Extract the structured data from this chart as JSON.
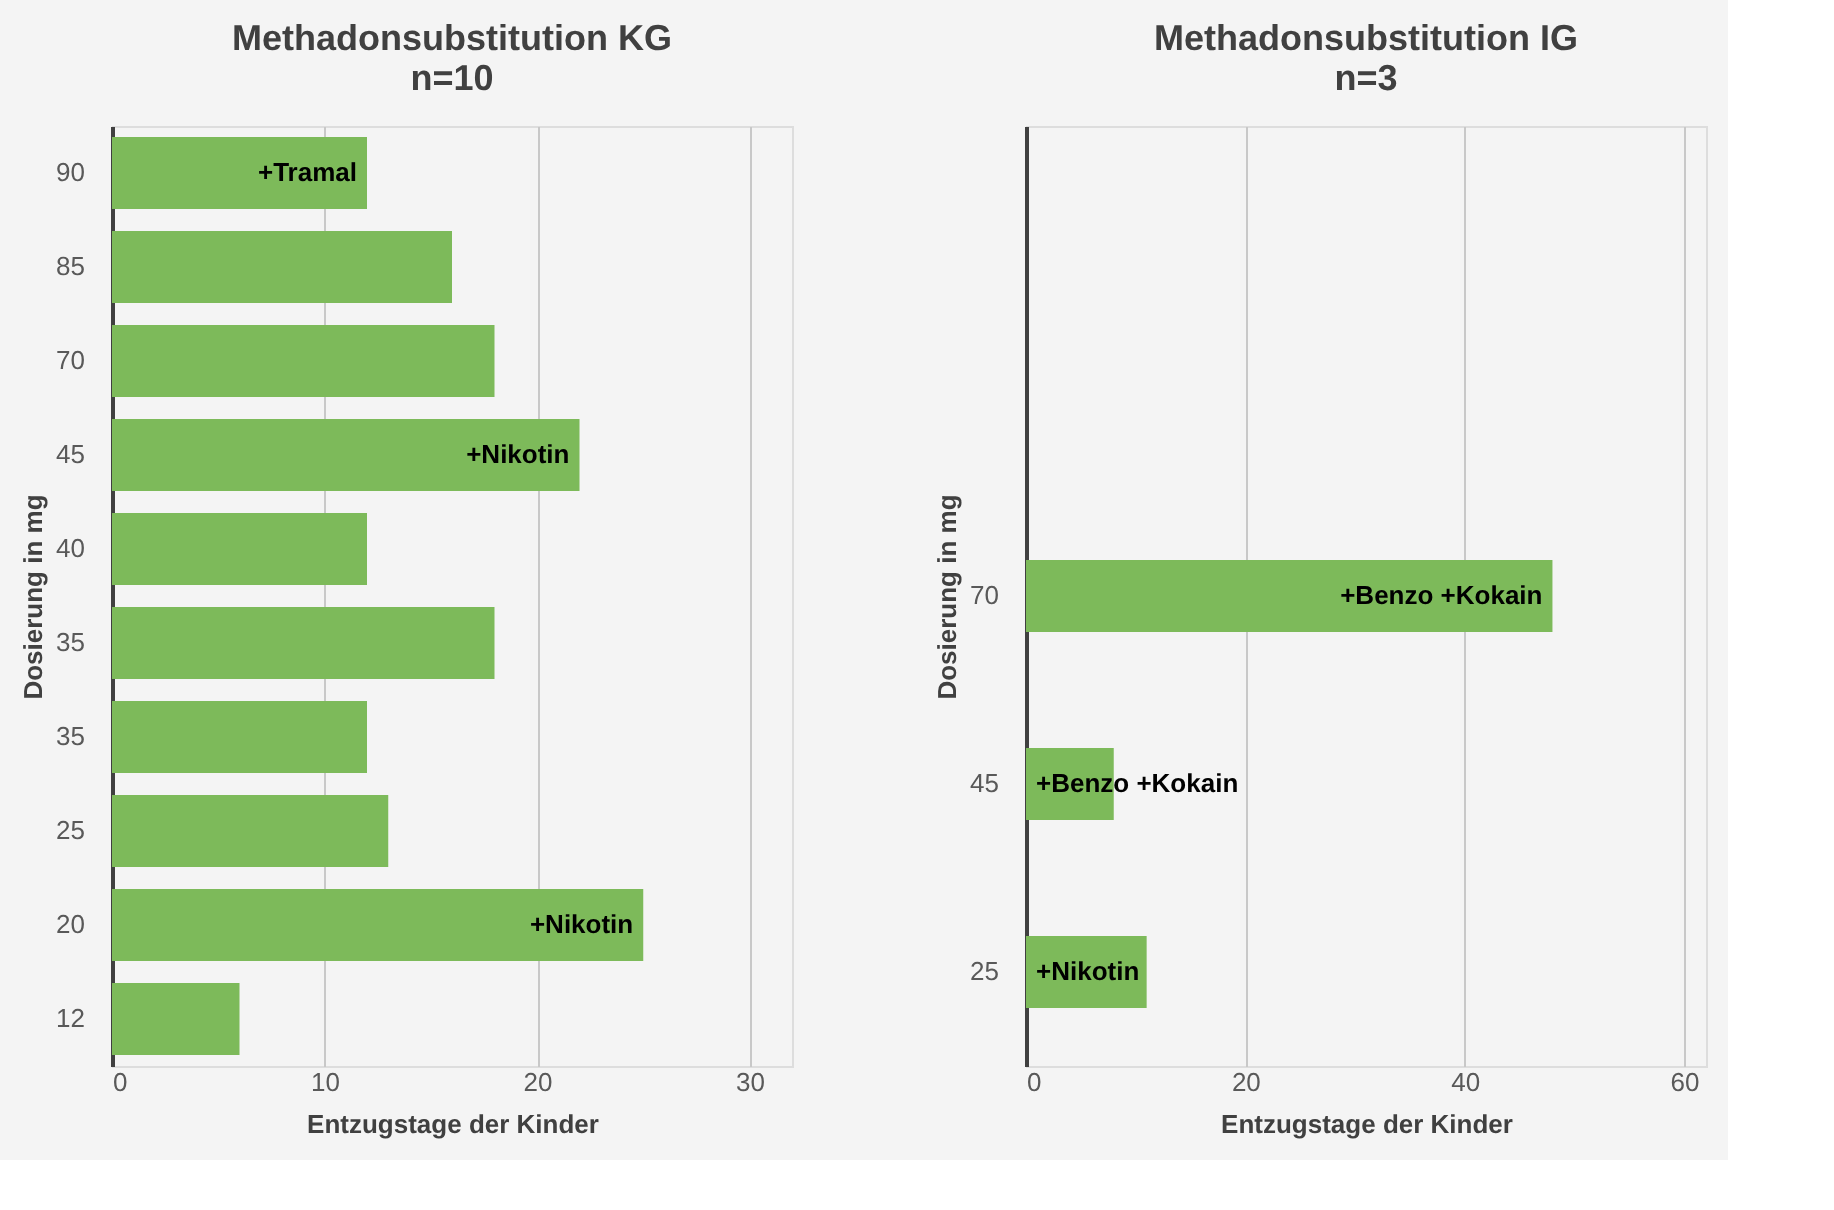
{
  "chart_data": [
    {
      "type": "bar",
      "orientation": "horizontal",
      "title": "Methadonsubstitution KG\nn=10",
      "xlabel": "Entzugstage der Kinder",
      "ylabel": "Dosierung in mg",
      "categories": [
        "90",
        "85",
        "70",
        "45",
        "40",
        "35",
        "35",
        "25",
        "20",
        "12"
      ],
      "series": [
        {
          "color": "#7dba5a",
          "values": [
            12,
            16,
            18,
            22,
            12,
            18,
            12,
            13,
            25,
            6
          ]
        }
      ],
      "xlim": [
        0,
        32
      ],
      "xticks": [
        0,
        10,
        20,
        30
      ],
      "grid": "x",
      "legend": false,
      "annotations": [
        {
          "text": "+Tramal",
          "x": 12,
          "y": "90"
        },
        {
          "text": "+Nikotin",
          "x": 22,
          "y": "45"
        },
        {
          "text": "+Nikotin",
          "x": 25,
          "y": "20"
        }
      ]
    },
    {
      "type": "bar",
      "orientation": "horizontal",
      "title": "Methadonsubstitution IG\nn=3",
      "xlabel": "Entzugstage der Kinder",
      "ylabel": "Dosierung in mg",
      "categories": [
        null,
        null,
        "70",
        "45",
        "25"
      ],
      "series": [
        {
          "color": "#7dba5a",
          "values": [
            null,
            null,
            48,
            8,
            11
          ]
        }
      ],
      "xlim": [
        0,
        62
      ],
      "xticks": [
        0,
        20,
        40,
        60
      ],
      "grid": "x",
      "legend": false,
      "annotations": [
        {
          "text": "+Benzo +Kokain",
          "x": 48,
          "y": "70"
        },
        {
          "text": "+Benzo +Kokain",
          "x": 0,
          "y": "45"
        },
        {
          "text": "+Nikotin",
          "x": 0,
          "y": "25"
        }
      ]
    }
  ]
}
